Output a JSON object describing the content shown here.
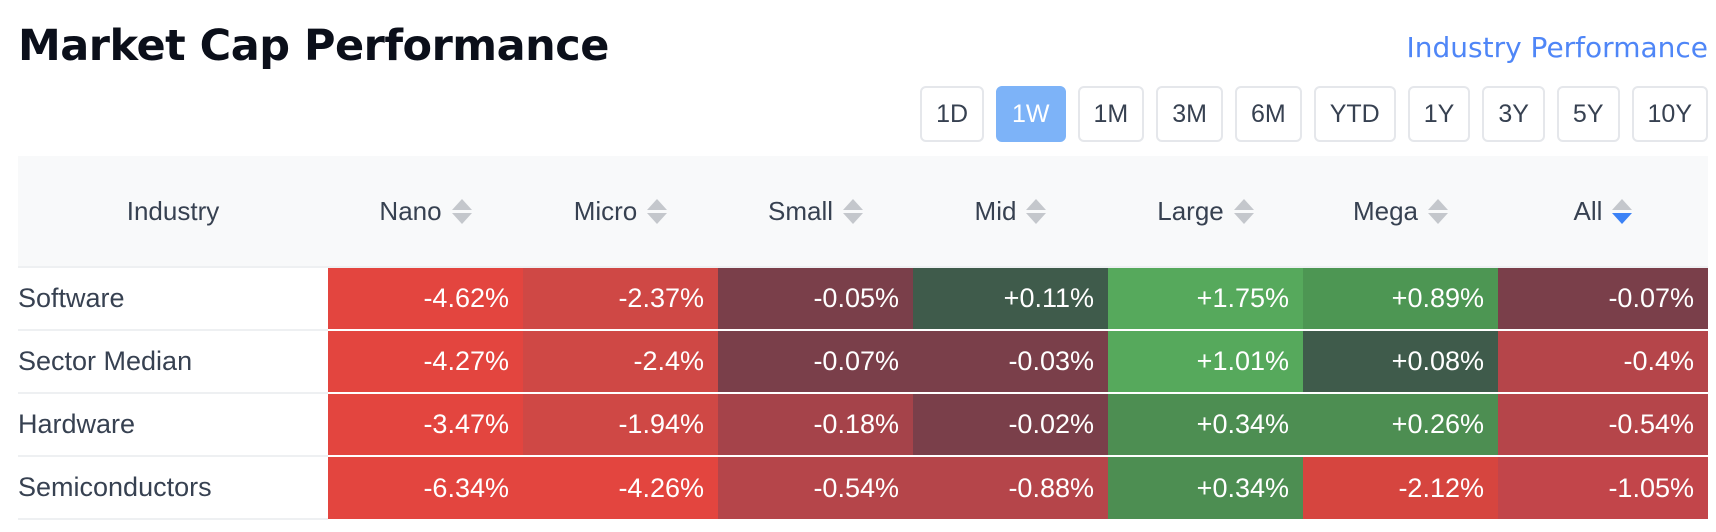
{
  "title": "Market Cap Performance",
  "industry_link": "Industry Performance",
  "periods": [
    "1D",
    "1W",
    "1M",
    "3M",
    "6M",
    "YTD",
    "1Y",
    "3Y",
    "5Y",
    "10Y"
  ],
  "active_period": "1W",
  "columns": {
    "industry": "Industry",
    "nano": "Nano",
    "micro": "Micro",
    "small": "Small",
    "mid": "Mid",
    "large": "Large",
    "mega": "Mega",
    "all": "All"
  },
  "sorted_column": "all",
  "rows": [
    {
      "industry": "Software",
      "values": [
        "-4.62%",
        "-2.37%",
        "-0.05%",
        "+0.11%",
        "+1.75%",
        "+0.89%",
        "-0.07%"
      ],
      "colors": [
        "#e3453f",
        "#cf4845",
        "#7a3f4a",
        "#3f5b4b",
        "#56a95c",
        "#4d9653",
        "#7a3f4a"
      ]
    },
    {
      "industry": "Sector Median",
      "values": [
        "-4.27%",
        "-2.4%",
        "-0.07%",
        "-0.03%",
        "+1.01%",
        "+0.08%",
        "-0.4%"
      ],
      "colors": [
        "#e3453f",
        "#cf4845",
        "#7a3f4a",
        "#7a3f4a",
        "#56a95c",
        "#3f5b4b",
        "#b5454a"
      ]
    },
    {
      "industry": "Hardware",
      "values": [
        "-3.47%",
        "-1.94%",
        "-0.18%",
        "-0.02%",
        "+0.34%",
        "+0.26%",
        "-0.54%"
      ],
      "colors": [
        "#e3453f",
        "#cf4845",
        "#a5434a",
        "#7a3f4a",
        "#4d8e52",
        "#4d8e52",
        "#b5454a"
      ]
    },
    {
      "industry": "Semiconductors",
      "values": [
        "-6.34%",
        "-4.26%",
        "-0.54%",
        "-0.88%",
        "+0.34%",
        "-2.12%",
        "-1.05%"
      ],
      "colors": [
        "#e3453f",
        "#e3453f",
        "#b5454a",
        "#b5454a",
        "#4d8e52",
        "#d6453f",
        "#c2454a"
      ]
    }
  ]
}
